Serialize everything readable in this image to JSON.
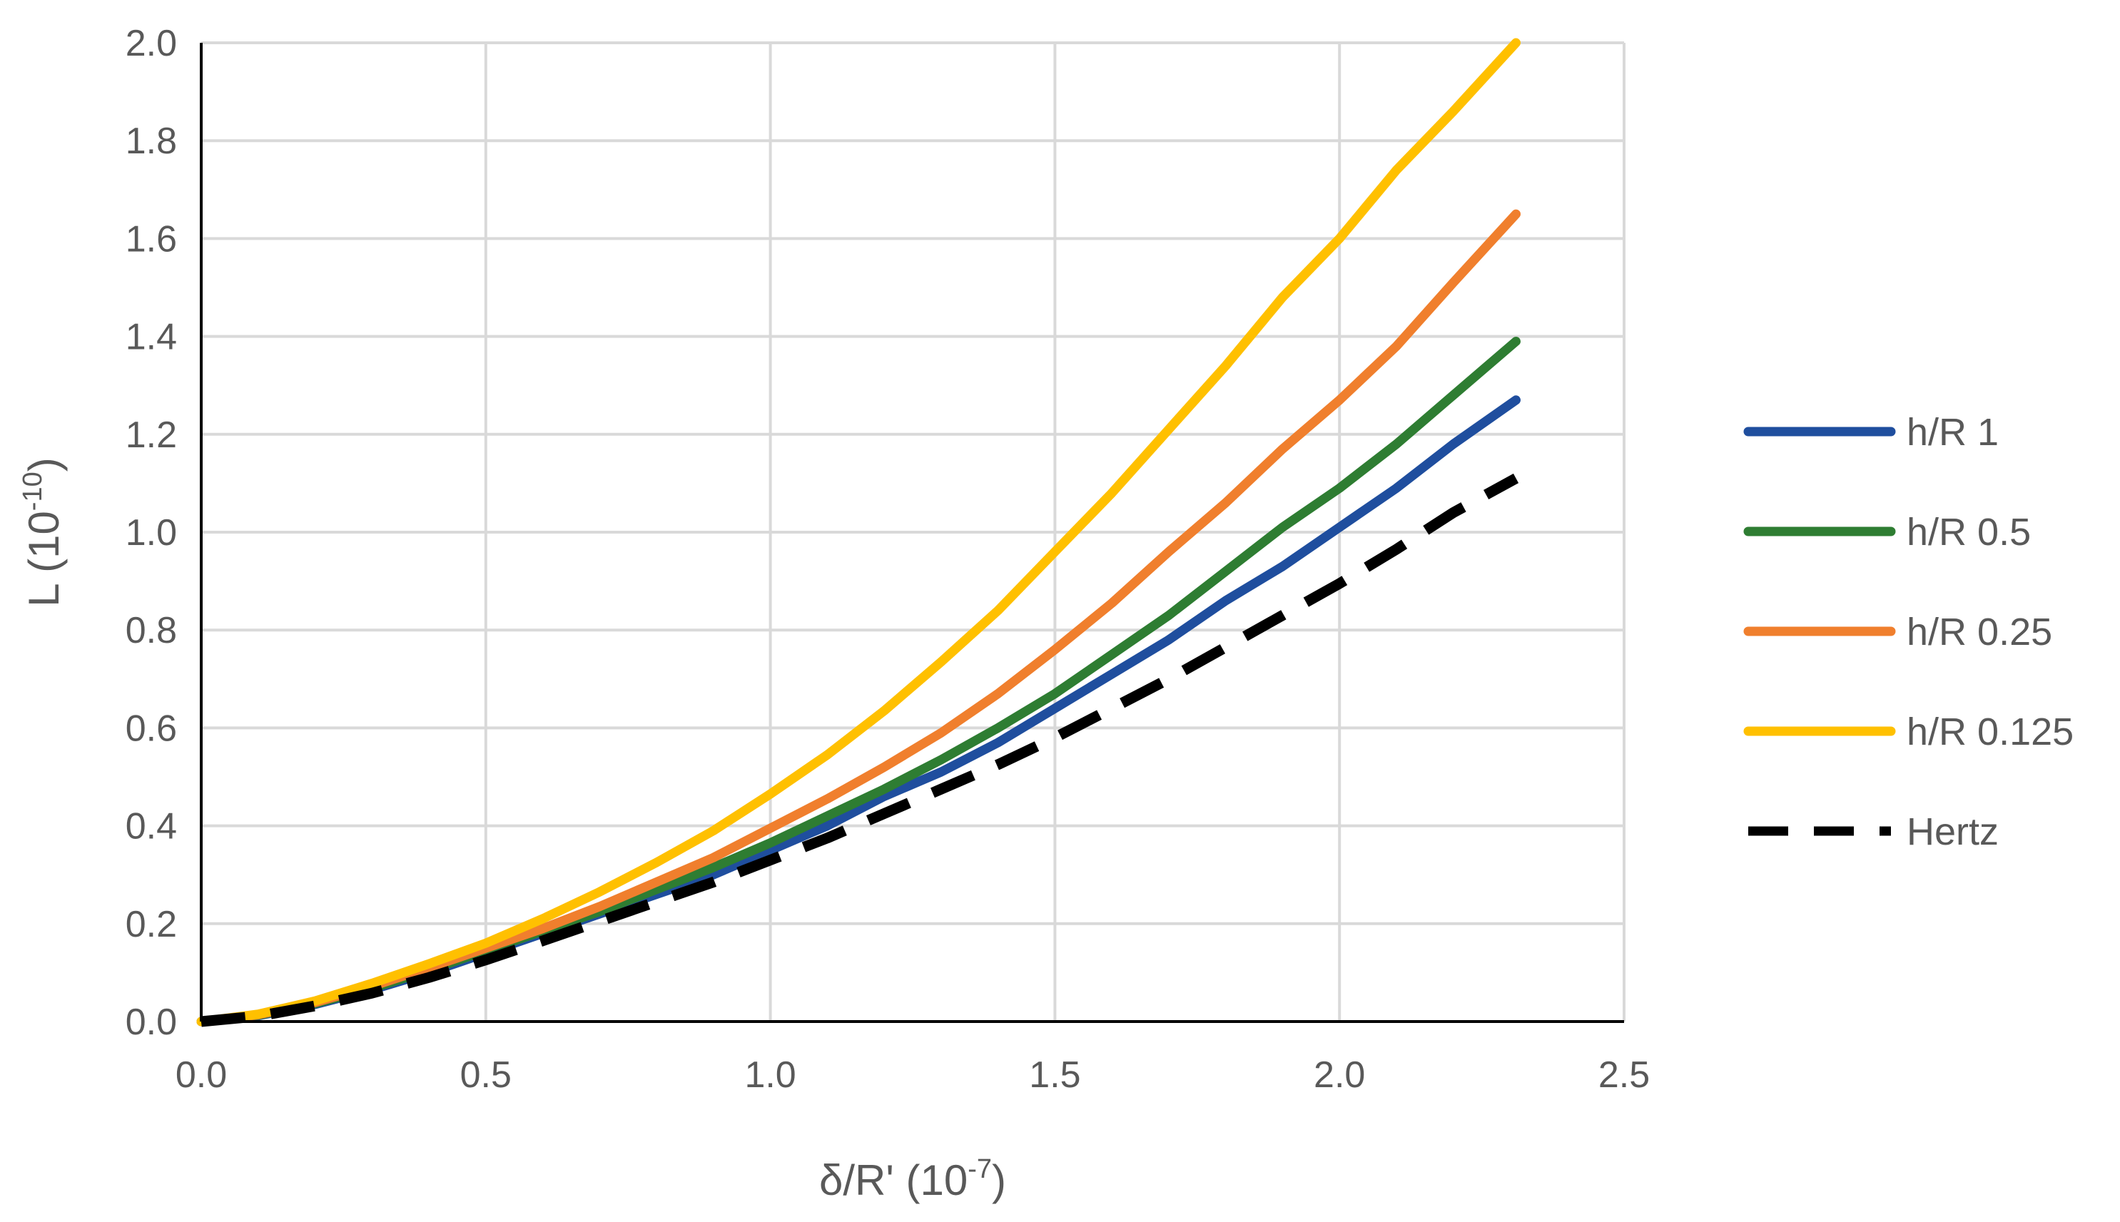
{
  "chart_data": {
    "type": "line",
    "title": "",
    "xlabel": "δ/R' (10",
    "xlabel_exp": "-7",
    "xlabel_suffix": ")",
    "ylabel": "L (10",
    "ylabel_exp": "-10",
    "ylabel_suffix": ")",
    "xlim": [
      0,
      2.5
    ],
    "ylim": [
      0,
      2.0
    ],
    "x_ticks": [
      "0.0",
      "0.5",
      "1.0",
      "1.5",
      "2.0",
      "2.5"
    ],
    "y_ticks": [
      "0.0",
      "0.2",
      "0.4",
      "0.6",
      "0.8",
      "1.0",
      "1.2",
      "1.4",
      "1.6",
      "1.8",
      "2.0"
    ],
    "grid": true,
    "legend_position": "right",
    "x": [
      0.0,
      0.1,
      0.2,
      0.3,
      0.4,
      0.5,
      0.6,
      0.7,
      0.8,
      0.9,
      1.0,
      1.1,
      1.2,
      1.3,
      1.4,
      1.5,
      1.6,
      1.7,
      1.8,
      1.9,
      2.0,
      2.1,
      2.2,
      2.31
    ],
    "series": [
      {
        "name": "h/R 1",
        "color": "#1f4e9e",
        "dash": false,
        "values": [
          0.0,
          0.012,
          0.035,
          0.065,
          0.1,
          0.14,
          0.18,
          0.22,
          0.26,
          0.3,
          0.35,
          0.4,
          0.46,
          0.51,
          0.57,
          0.64,
          0.71,
          0.78,
          0.86,
          0.93,
          1.01,
          1.09,
          1.18,
          1.27
        ]
      },
      {
        "name": "h/R 0.5",
        "color": "#2e7d32",
        "dash": false,
        "values": [
          0.0,
          0.013,
          0.037,
          0.068,
          0.105,
          0.145,
          0.185,
          0.225,
          0.27,
          0.315,
          0.365,
          0.42,
          0.475,
          0.535,
          0.6,
          0.67,
          0.75,
          0.83,
          0.92,
          1.01,
          1.09,
          1.18,
          1.28,
          1.39
        ]
      },
      {
        "name": "h/R 0.25",
        "color": "#f07f2d",
        "dash": false,
        "values": [
          0.0,
          0.014,
          0.039,
          0.072,
          0.11,
          0.15,
          0.19,
          0.235,
          0.285,
          0.335,
          0.395,
          0.455,
          0.52,
          0.59,
          0.67,
          0.76,
          0.855,
          0.96,
          1.06,
          1.17,
          1.27,
          1.38,
          1.51,
          1.65
        ]
      },
      {
        "name": "h/R 0.125",
        "color": "#ffc000",
        "dash": false,
        "values": [
          0.0,
          0.015,
          0.042,
          0.078,
          0.118,
          0.16,
          0.21,
          0.265,
          0.325,
          0.39,
          0.465,
          0.545,
          0.635,
          0.735,
          0.84,
          0.96,
          1.08,
          1.21,
          1.34,
          1.48,
          1.6,
          1.74,
          1.86,
          2.0
        ]
      },
      {
        "name": "Hertz",
        "color": "#000000",
        "dash": true,
        "values": [
          0.0,
          0.011,
          0.032,
          0.058,
          0.09,
          0.126,
          0.165,
          0.205,
          0.245,
          0.285,
          0.33,
          0.375,
          0.425,
          0.475,
          0.525,
          0.58,
          0.64,
          0.7,
          0.765,
          0.83,
          0.895,
          0.965,
          1.04,
          1.11
        ]
      }
    ]
  }
}
